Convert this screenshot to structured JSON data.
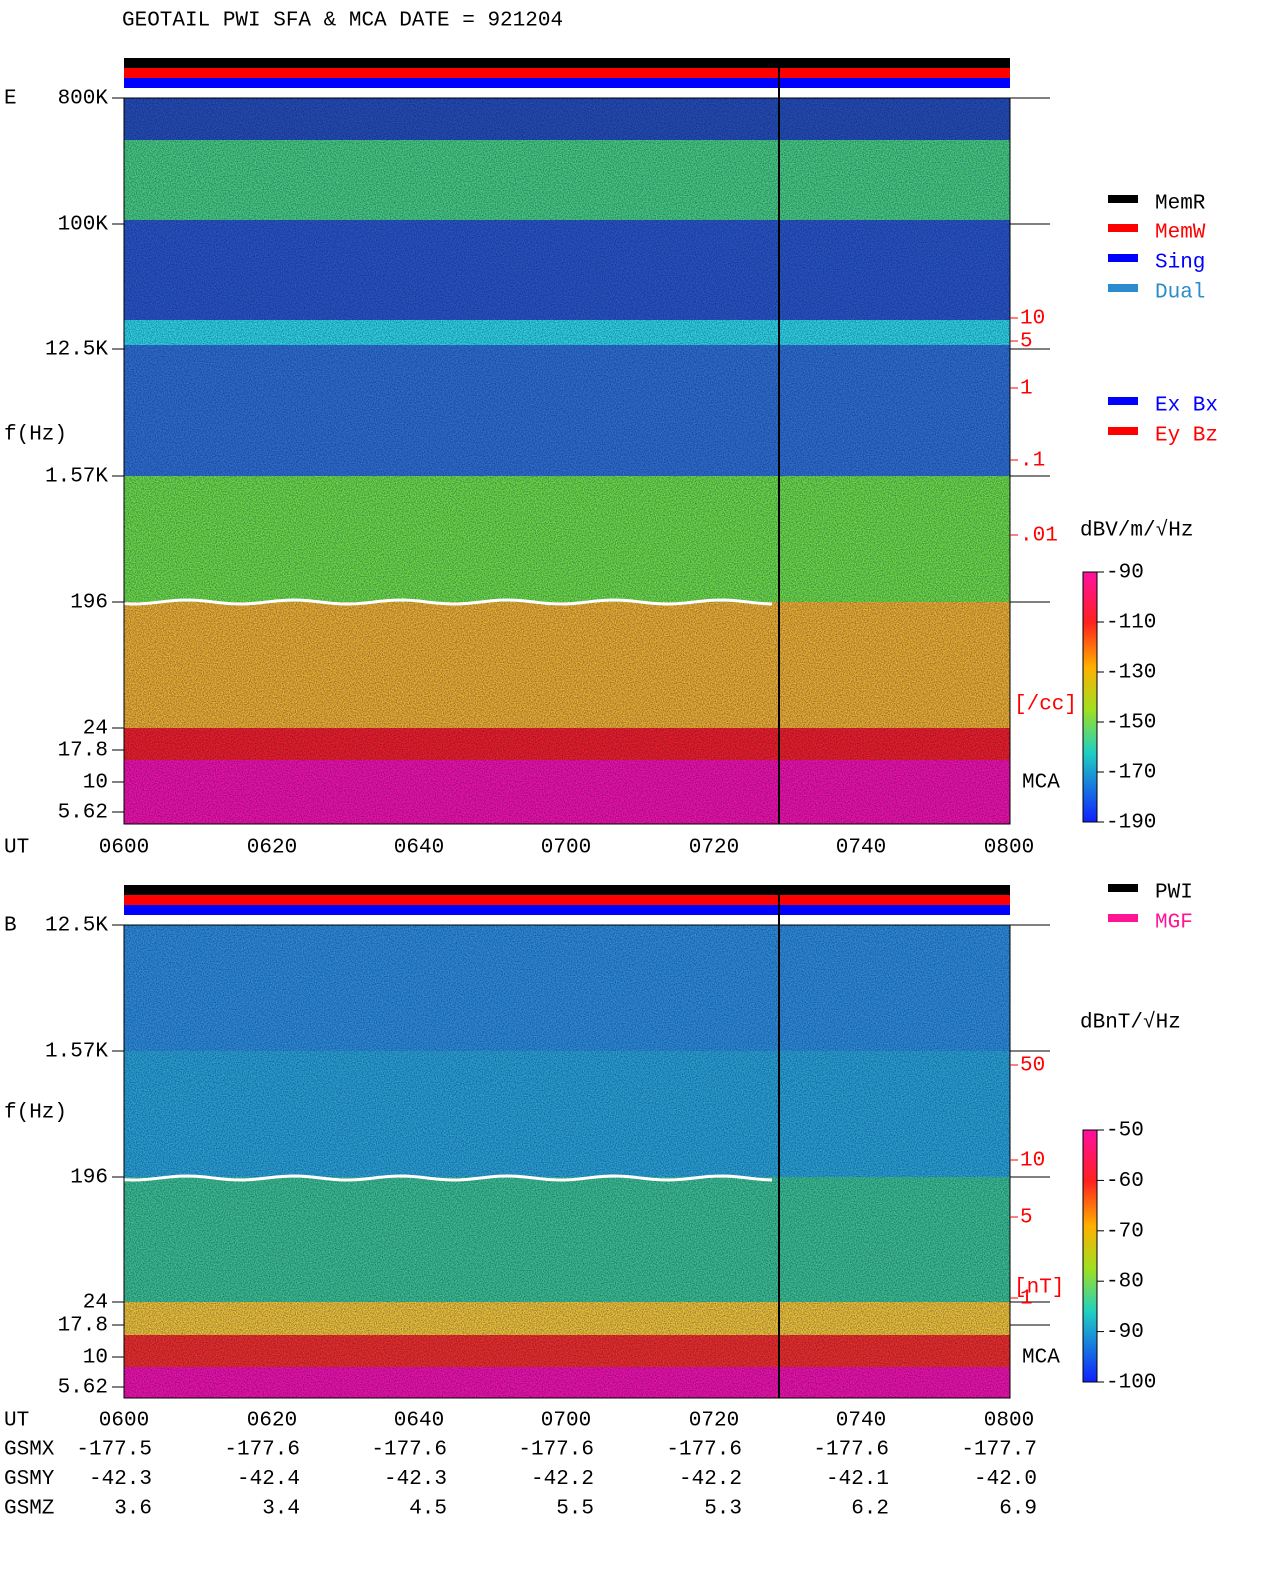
{
  "title": "GEOTAIL  PWI SFA & MCA   DATE = 921204",
  "x_axis": {
    "label": "UT",
    "ticks": [
      "0600",
      "0620",
      "0640",
      "0700",
      "0720",
      "0740",
      "0800"
    ]
  },
  "panels": [
    {
      "label": "E",
      "y_label": "f(Hz)",
      "y_ticks": [
        "800K",
        "100K",
        "12.5K",
        "1.57K",
        "196",
        "24",
        "17.8",
        "10",
        "5.62"
      ],
      "mca_label": "MCA",
      "density_ticks": [
        "10",
        "5",
        "1",
        ".1",
        ".01"
      ],
      "density_unit": "[/cc]",
      "colorbar": {
        "unit": "dBV/m/√Hz",
        "ticks": [
          "-90",
          "-110",
          "-130",
          "-150",
          "-170",
          "-190"
        ]
      },
      "legend": [
        {
          "name": "MemR",
          "color": "#000000"
        },
        {
          "name": "MemW",
          "color": "#ff0000"
        },
        {
          "name": "Sing",
          "color": "#0000ff"
        },
        {
          "name": "Dual",
          "color": "#2a8ccc"
        }
      ],
      "legend2": [
        {
          "name": "Ex Bx",
          "color": "#0000ff"
        },
        {
          "name": "Ey Bz",
          "color": "#ff0000"
        }
      ]
    },
    {
      "label": "B",
      "y_label": "f(Hz)",
      "y_ticks": [
        "12.5K",
        "1.57K",
        "196",
        "24",
        "17.8",
        "10",
        "5.62"
      ],
      "mca_label": "MCA",
      "density_ticks": [
        "50",
        "10",
        "5",
        "1"
      ],
      "density_unit": "[nT]",
      "colorbar": {
        "unit": "dBnT/√Hz",
        "ticks": [
          "-50",
          "-60",
          "-70",
          "-80",
          "-90",
          "-100"
        ]
      },
      "legend": [
        {
          "name": "PWI",
          "color": "#000000"
        },
        {
          "name": "MGF",
          "color": "#ff1493"
        }
      ]
    }
  ],
  "orbit": [
    {
      "name": "GSMX",
      "values": [
        "-177.5",
        "-177.6",
        "-177.6",
        "-177.6",
        "-177.6",
        "-177.6",
        "-177.7"
      ]
    },
    {
      "name": "GSMY",
      "values": [
        "-42.3",
        "-42.4",
        "-42.3",
        "-42.2",
        "-42.2",
        "-42.1",
        "-42.0"
      ]
    },
    {
      "name": "GSMZ",
      "values": [
        "3.6",
        "3.4",
        "4.5",
        "5.5",
        "5.3",
        "6.2",
        "6.9"
      ]
    }
  ]
}
